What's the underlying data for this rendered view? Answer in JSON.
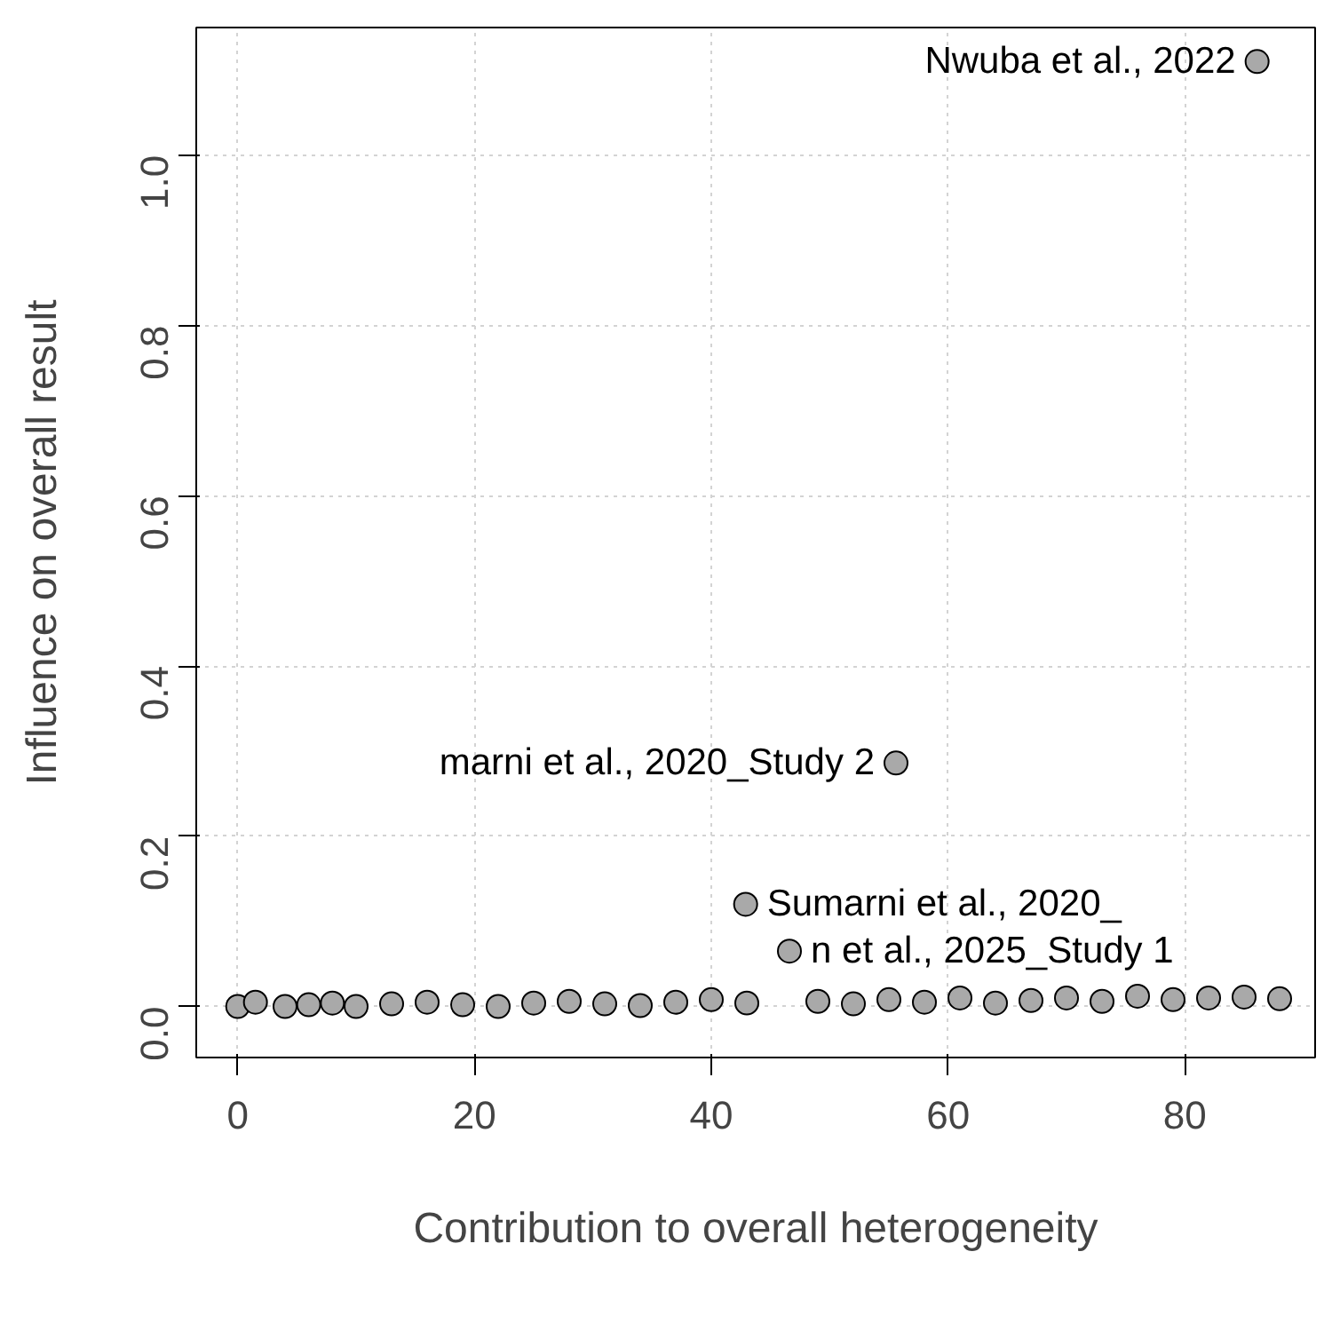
{
  "chart_data": {
    "type": "scatter",
    "xlabel": "Contribution to overall heterogeneity",
    "ylabel": "Influence on overall result",
    "x": [
      86.1,
      55.6,
      42.9,
      46.6,
      0,
      1.5,
      4,
      6,
      8,
      10,
      13,
      16,
      19,
      22,
      25,
      28,
      31,
      34,
      37,
      40,
      43,
      49,
      52,
      55,
      58,
      61,
      64,
      67,
      70,
      73,
      76,
      79,
      82,
      85,
      88
    ],
    "values": [
      1.11,
      0.286,
      0.12,
      0.065,
      0.0,
      0.005,
      0.0,
      0.002,
      0.004,
      0.0,
      0.003,
      0.005,
      0.002,
      0.0,
      0.004,
      0.006,
      0.003,
      0.001,
      0.005,
      0.008,
      0.004,
      0.006,
      0.003,
      0.008,
      0.005,
      0.01,
      0.004,
      0.007,
      0.01,
      0.006,
      0.012,
      0.008,
      0.01,
      0.011,
      0.009
    ],
    "annotations": [
      {
        "text": "Nwuba et al., 2022",
        "x": 86.1,
        "y": 1.11
      },
      {
        "text": "marni et al., 2020_Study 2",
        "x": 55.6,
        "y": 0.286
      },
      {
        "text": "Sumarni et al., 2020_",
        "x": 42.9,
        "y": 0.12
      },
      {
        "text": "n et al., 2025_Study 1",
        "x": 46.6,
        "y": 0.065
      }
    ],
    "color": "#a9a9a9",
    "marker": "circle",
    "grid": true,
    "xlim": [
      -3.5,
      91
    ],
    "ylim": [
      -0.06,
      1.15
    ],
    "xticks": [
      0,
      20,
      40,
      60,
      80
    ],
    "yticks": [
      {
        "value": 0,
        "label": "0.0"
      },
      {
        "value": 0.2,
        "label": "0.2"
      },
      {
        "value": 0.4,
        "label": "0.4"
      },
      {
        "value": 0.6,
        "label": "0.6"
      },
      {
        "value": 0.8,
        "label": "0.8"
      },
      {
        "value": 1.0,
        "label": "1.0"
      }
    ]
  }
}
